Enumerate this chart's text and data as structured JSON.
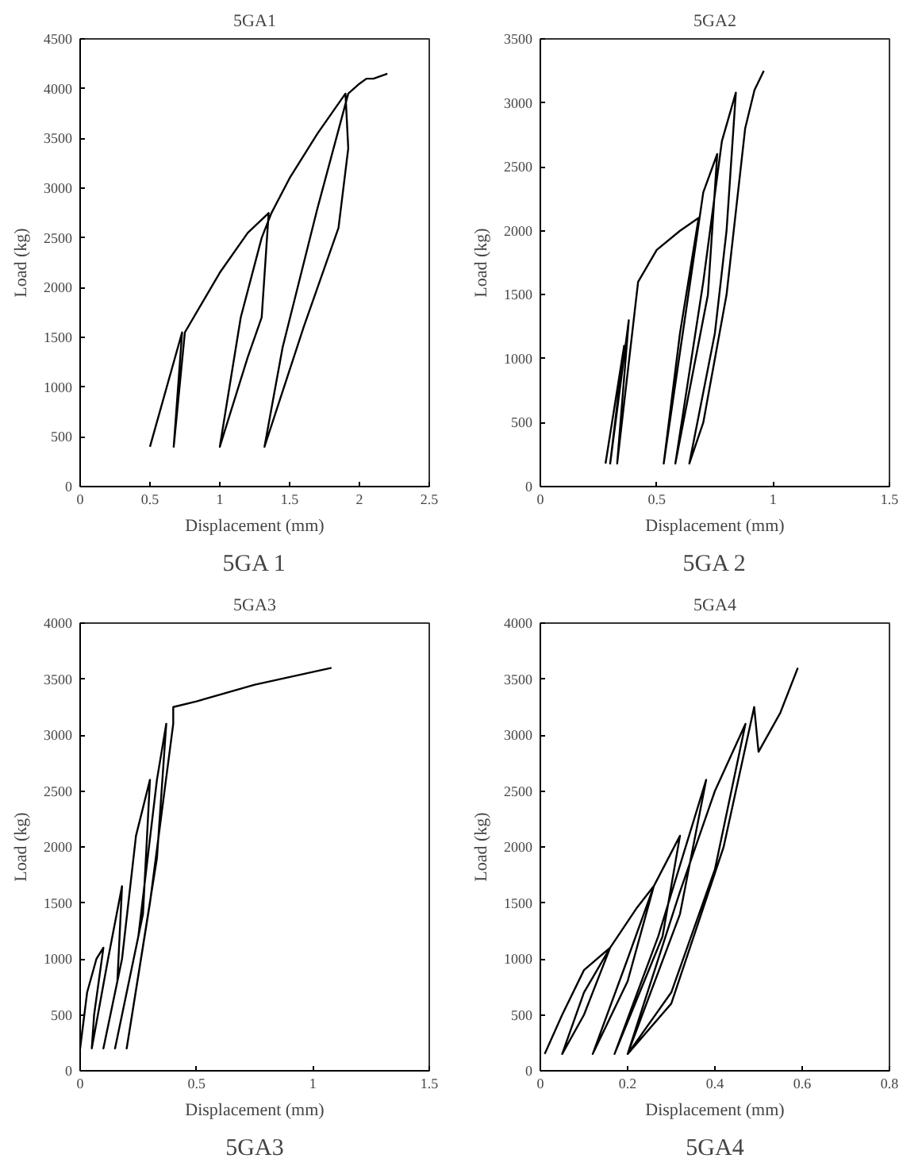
{
  "chart_data": [
    {
      "type": "line",
      "title": "5GA1",
      "xlabel": "Displacement (mm)",
      "ylabel": "Load (kg)",
      "annotations": [
        "5GA 1"
      ],
      "xlim": [
        0,
        2.5
      ],
      "xticks": [
        0,
        0.5,
        1,
        1.5,
        2,
        2.5
      ],
      "ylim": [
        0,
        4500
      ],
      "yticks": [
        0,
        500,
        1000,
        1500,
        2000,
        2500,
        3000,
        3500,
        4000,
        4500
      ],
      "grid": false,
      "marker": "none",
      "line_style": "solid",
      "series": [
        {
          "color": "#000000",
          "x": [
            0.5,
            0.73,
            0.67,
            0.75,
            1.0,
            1.2,
            1.35,
            1.3,
            1.2,
            1.0,
            1.15,
            1.3,
            1.37,
            1.5,
            1.7,
            1.9,
            1.92,
            1.85,
            1.6,
            1.32,
            1.45,
            1.7,
            1.92,
            2.0,
            2.05,
            2.1,
            2.2
          ],
          "values": [
            400,
            1550,
            400,
            1550,
            2150,
            2550,
            2750,
            1700,
            1300,
            400,
            1700,
            2500,
            2750,
            3100,
            3550,
            3950,
            3400,
            2600,
            1600,
            400,
            1400,
            2800,
            3950,
            4050,
            4100,
            4100,
            4150
          ]
        }
      ]
    },
    {
      "type": "line",
      "title": "5GA2",
      "xlabel": "Displacement (mm)",
      "ylabel": "Load (kg)",
      "annotations": [
        "5GA 2"
      ],
      "xlim": [
        0,
        1.5
      ],
      "xticks": [
        0,
        0.5,
        1,
        1.5
      ],
      "ylim": [
        0,
        3500
      ],
      "yticks": [
        0,
        500,
        1000,
        1500,
        2000,
        2500,
        3000,
        3500
      ],
      "grid": false,
      "marker": "none",
      "line_style": "solid",
      "series": [
        {
          "color": "#000000",
          "x": [
            0.28,
            0.36,
            0.3,
            0.38,
            0.33,
            0.42,
            0.5,
            0.6,
            0.68,
            0.6,
            0.53,
            0.62,
            0.7,
            0.76,
            0.72,
            0.58,
            0.7,
            0.78,
            0.84,
            0.8,
            0.75,
            0.64,
            0.7,
            0.8,
            0.88,
            0.92,
            0.96
          ],
          "values": [
            180,
            1100,
            180,
            1300,
            180,
            1600,
            1850,
            2000,
            2100,
            1200,
            180,
            1300,
            2300,
            2600,
            1500,
            180,
            1600,
            2700,
            3080,
            2000,
            1200,
            180,
            500,
            1500,
            2800,
            3100,
            3250
          ]
        }
      ]
    },
    {
      "type": "line",
      "title": "5GA3",
      "xlabel": "Displacement (mm)",
      "ylabel": "Load (kg)",
      "annotations": [
        "5GA3"
      ],
      "xlim": [
        0,
        1.5
      ],
      "xticks": [
        0,
        0.5,
        1,
        1.5
      ],
      "ylim": [
        0,
        4000
      ],
      "yticks": [
        0,
        500,
        1000,
        1500,
        2000,
        2500,
        3000,
        3500,
        4000
      ],
      "grid": false,
      "marker": "none",
      "line_style": "solid",
      "series": [
        {
          "color": "#000000",
          "x": [
            0,
            0.03,
            0.07,
            0.1,
            0.06,
            0.05,
            0.12,
            0.18,
            0.16,
            0.1,
            0.18,
            0.24,
            0.3,
            0.27,
            0.15,
            0.25,
            0.33,
            0.37,
            0.33,
            0.2,
            0.3,
            0.4,
            0.4,
            0.5,
            0.75,
            1.08
          ],
          "values": [
            200,
            700,
            1000,
            1100,
            500,
            200,
            1000,
            1650,
            800,
            200,
            1000,
            2100,
            2600,
            1400,
            200,
            1200,
            2600,
            3100,
            1900,
            200,
            1500,
            3100,
            3250,
            3300,
            3450,
            3600
          ]
        }
      ]
    },
    {
      "type": "line",
      "title": "5GA4",
      "xlabel": "Displacement (mm)",
      "ylabel": "Load (kg)",
      "annotations": [
        "5GA4"
      ],
      "xlim": [
        0,
        0.8
      ],
      "xticks": [
        0,
        0.2,
        0.4,
        0.6,
        0.8
      ],
      "ylim": [
        0,
        4000
      ],
      "yticks": [
        0,
        500,
        1000,
        1500,
        2000,
        2500,
        3000,
        3500,
        4000
      ],
      "grid": false,
      "marker": "none",
      "line_style": "solid",
      "series": [
        {
          "color": "#000000",
          "x": [
            0.01,
            0.05,
            0.1,
            0.16,
            0.1,
            0.05,
            0.1,
            0.16,
            0.22,
            0.26,
            0.2,
            0.12,
            0.2,
            0.26,
            0.32,
            0.28,
            0.17,
            0.27,
            0.38,
            0.32,
            0.2,
            0.32,
            0.4,
            0.47,
            0.4,
            0.3,
            0.2,
            0.3,
            0.42,
            0.49,
            0.5,
            0.55,
            0.59
          ],
          "values": [
            150,
            500,
            900,
            1100,
            500,
            150,
            700,
            1100,
            1450,
            1650,
            800,
            150,
            1000,
            1650,
            2100,
            1200,
            150,
            1200,
            2600,
            1400,
            150,
            1600,
            2500,
            3100,
            1800,
            700,
            150,
            600,
            2000,
            3250,
            2850,
            3200,
            3600
          ]
        }
      ]
    }
  ]
}
